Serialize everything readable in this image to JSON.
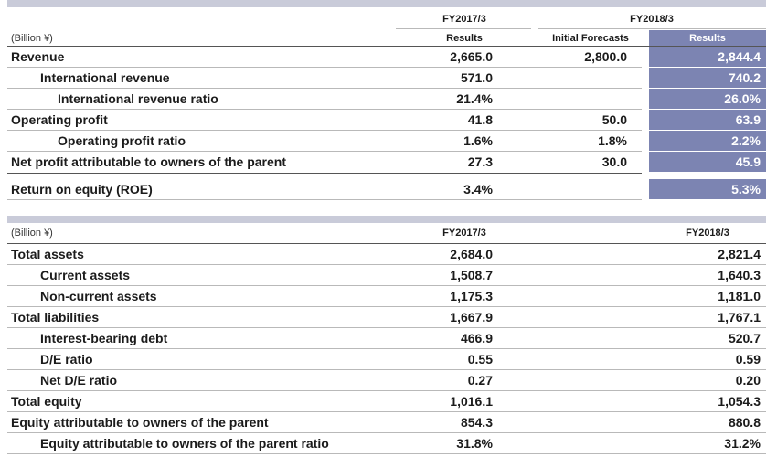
{
  "table1": {
    "unit": "(Billion ¥)",
    "period_prev": "FY2017/3",
    "period_curr": "FY2018/3",
    "col_results_prev": "Results",
    "col_forecast": "Initial Forecasts",
    "col_results_curr": "Results",
    "rows": [
      {
        "label": "Revenue",
        "prev": "2,665.0",
        "forecast": "2,800.0",
        "curr": "2,844.4"
      },
      {
        "label": "International revenue",
        "prev": "571.0",
        "forecast": "",
        "curr": "740.2"
      },
      {
        "label": "International revenue ratio",
        "prev": "21.4%",
        "forecast": "",
        "curr": "26.0%"
      },
      {
        "label": "Operating profit",
        "prev": "41.8",
        "forecast": "50.0",
        "curr": "63.9"
      },
      {
        "label": "Operating profit ratio",
        "prev": "1.6%",
        "forecast": "1.8%",
        "curr": "2.2%"
      },
      {
        "label": "Net profit attributable to owners of the parent",
        "prev": "27.3",
        "forecast": "30.0",
        "curr": "45.9"
      },
      {
        "label": "Return on equity (ROE)",
        "prev": "3.4%",
        "forecast": "",
        "curr": "5.3%"
      }
    ]
  },
  "table2": {
    "unit": "(Billion ¥)",
    "period_prev": "FY2017/3",
    "period_curr": "FY2018/3",
    "rows": [
      {
        "label": "Total assets",
        "prev": "2,684.0",
        "curr": "2,821.4"
      },
      {
        "label": "Current assets",
        "prev": "1,508.7",
        "curr": "1,640.3"
      },
      {
        "label": "Non-current assets",
        "prev": "1,175.3",
        "curr": "1,181.0"
      },
      {
        "label": "Total liabilities",
        "prev": "1,667.9",
        "curr": "1,767.1"
      },
      {
        "label": "Interest-bearing debt",
        "prev": "466.9",
        "curr": "520.7"
      },
      {
        "label": "D/E ratio",
        "prev": "0.55",
        "curr": "0.59"
      },
      {
        "label": "Net D/E ratio",
        "prev": "0.27",
        "curr": "0.20"
      },
      {
        "label": "Total equity",
        "prev": "1,016.1",
        "curr": "1,054.3"
      },
      {
        "label": "Equity attributable to owners of the parent",
        "prev": "854.3",
        "curr": "880.8"
      },
      {
        "label": "Equity attributable to owners of the parent ratio",
        "prev": "31.8%",
        "curr": "31.2%"
      }
    ]
  }
}
